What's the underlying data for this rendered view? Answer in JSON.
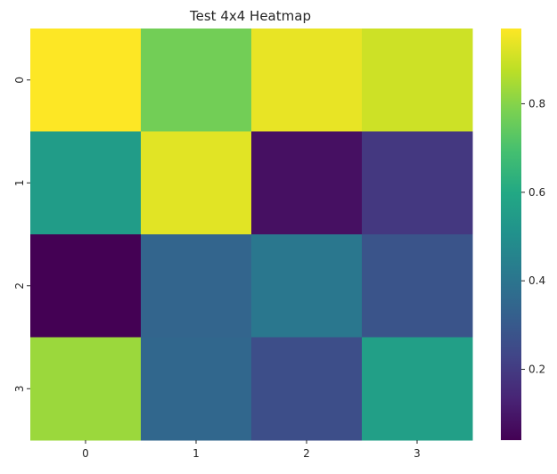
{
  "chart_data": {
    "type": "heatmap",
    "title": "Test 4x4 Heatmap",
    "xlabel": "",
    "ylabel": "",
    "x_categories": [
      "0",
      "1",
      "2",
      "3"
    ],
    "y_categories": [
      "0",
      "1",
      "2",
      "3"
    ],
    "values": [
      [
        0.97,
        0.77,
        0.94,
        0.9
      ],
      [
        0.55,
        0.93,
        0.08,
        0.19
      ],
      [
        0.04,
        0.34,
        0.41,
        0.28
      ],
      [
        0.83,
        0.35,
        0.26,
        0.56
      ]
    ],
    "colormap": "viridis",
    "vmin": 0.04,
    "vmax": 0.97,
    "colorbar": {
      "ticks": [
        0.2,
        0.4,
        0.6,
        0.8
      ],
      "tick_labels": [
        "0.2",
        "0.4",
        "0.6",
        "0.8"
      ]
    },
    "grid": false
  }
}
